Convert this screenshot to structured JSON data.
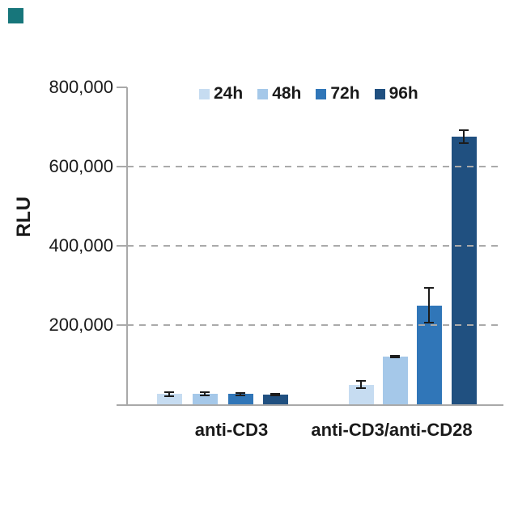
{
  "brand": {
    "color": "#17767b"
  },
  "chart_data": {
    "type": "bar",
    "title": "",
    "ylabel": "RLU",
    "xlabel": "",
    "ylim": [
      0,
      800000
    ],
    "yticks": [
      200000,
      400000,
      600000,
      800000
    ],
    "ytick_labels": [
      "200,000",
      "400,000",
      "600,000",
      "800,000"
    ],
    "gridlines_dashed_at": [
      200000,
      400000,
      600000
    ],
    "legend_position": "top",
    "categories": [
      "anti-CD3",
      "anti-CD3/anti-CD28"
    ],
    "series": [
      {
        "name": "24h",
        "color": "#c6dcf1",
        "values": [
          26000,
          50000
        ],
        "errors": [
          7000,
          12000
        ]
      },
      {
        "name": "48h",
        "color": "#a5c8e9",
        "values": [
          26000,
          120000
        ],
        "errors": [
          6000,
          4000
        ]
      },
      {
        "name": "72h",
        "color": "#3076b8",
        "values": [
          26000,
          250000
        ],
        "errors": [
          5000,
          45000
        ]
      },
      {
        "name": "96h",
        "color": "#205080",
        "values": [
          25000,
          675000
        ],
        "errors": [
          4000,
          18000
        ]
      }
    ],
    "error_bar_color": "#1c1c1c",
    "axis_color": "#a9a9a9"
  }
}
